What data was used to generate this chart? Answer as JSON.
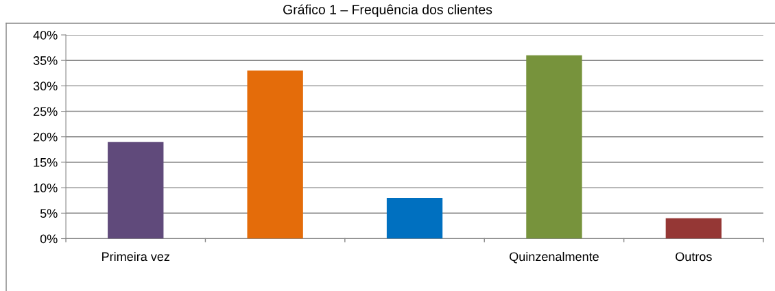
{
  "chart_data": {
    "type": "bar",
    "title": "Gráfico 1 – Frequência dos clientes",
    "categories": [
      "Primeira vez",
      null,
      null,
      "Quinzenalmente",
      "Outros"
    ],
    "values": [
      19,
      33,
      8,
      36,
      4
    ],
    "colors": [
      "#604a7b",
      "#e46c0a",
      "#0070c0",
      "#77933c",
      "#953735"
    ],
    "ylim": [
      0,
      40
    ],
    "yticks": [
      {
        "value": 0,
        "label": "0%"
      },
      {
        "value": 5,
        "label": "5%"
      },
      {
        "value": 10,
        "label": "10%"
      },
      {
        "value": 15,
        "label": "15%"
      },
      {
        "value": 20,
        "label": "20%"
      },
      {
        "value": 25,
        "label": "25%"
      },
      {
        "value": 30,
        "label": "30%"
      },
      {
        "value": 35,
        "label": "35%"
      },
      {
        "value": 40,
        "label": "40%"
      }
    ],
    "grid": "y"
  }
}
